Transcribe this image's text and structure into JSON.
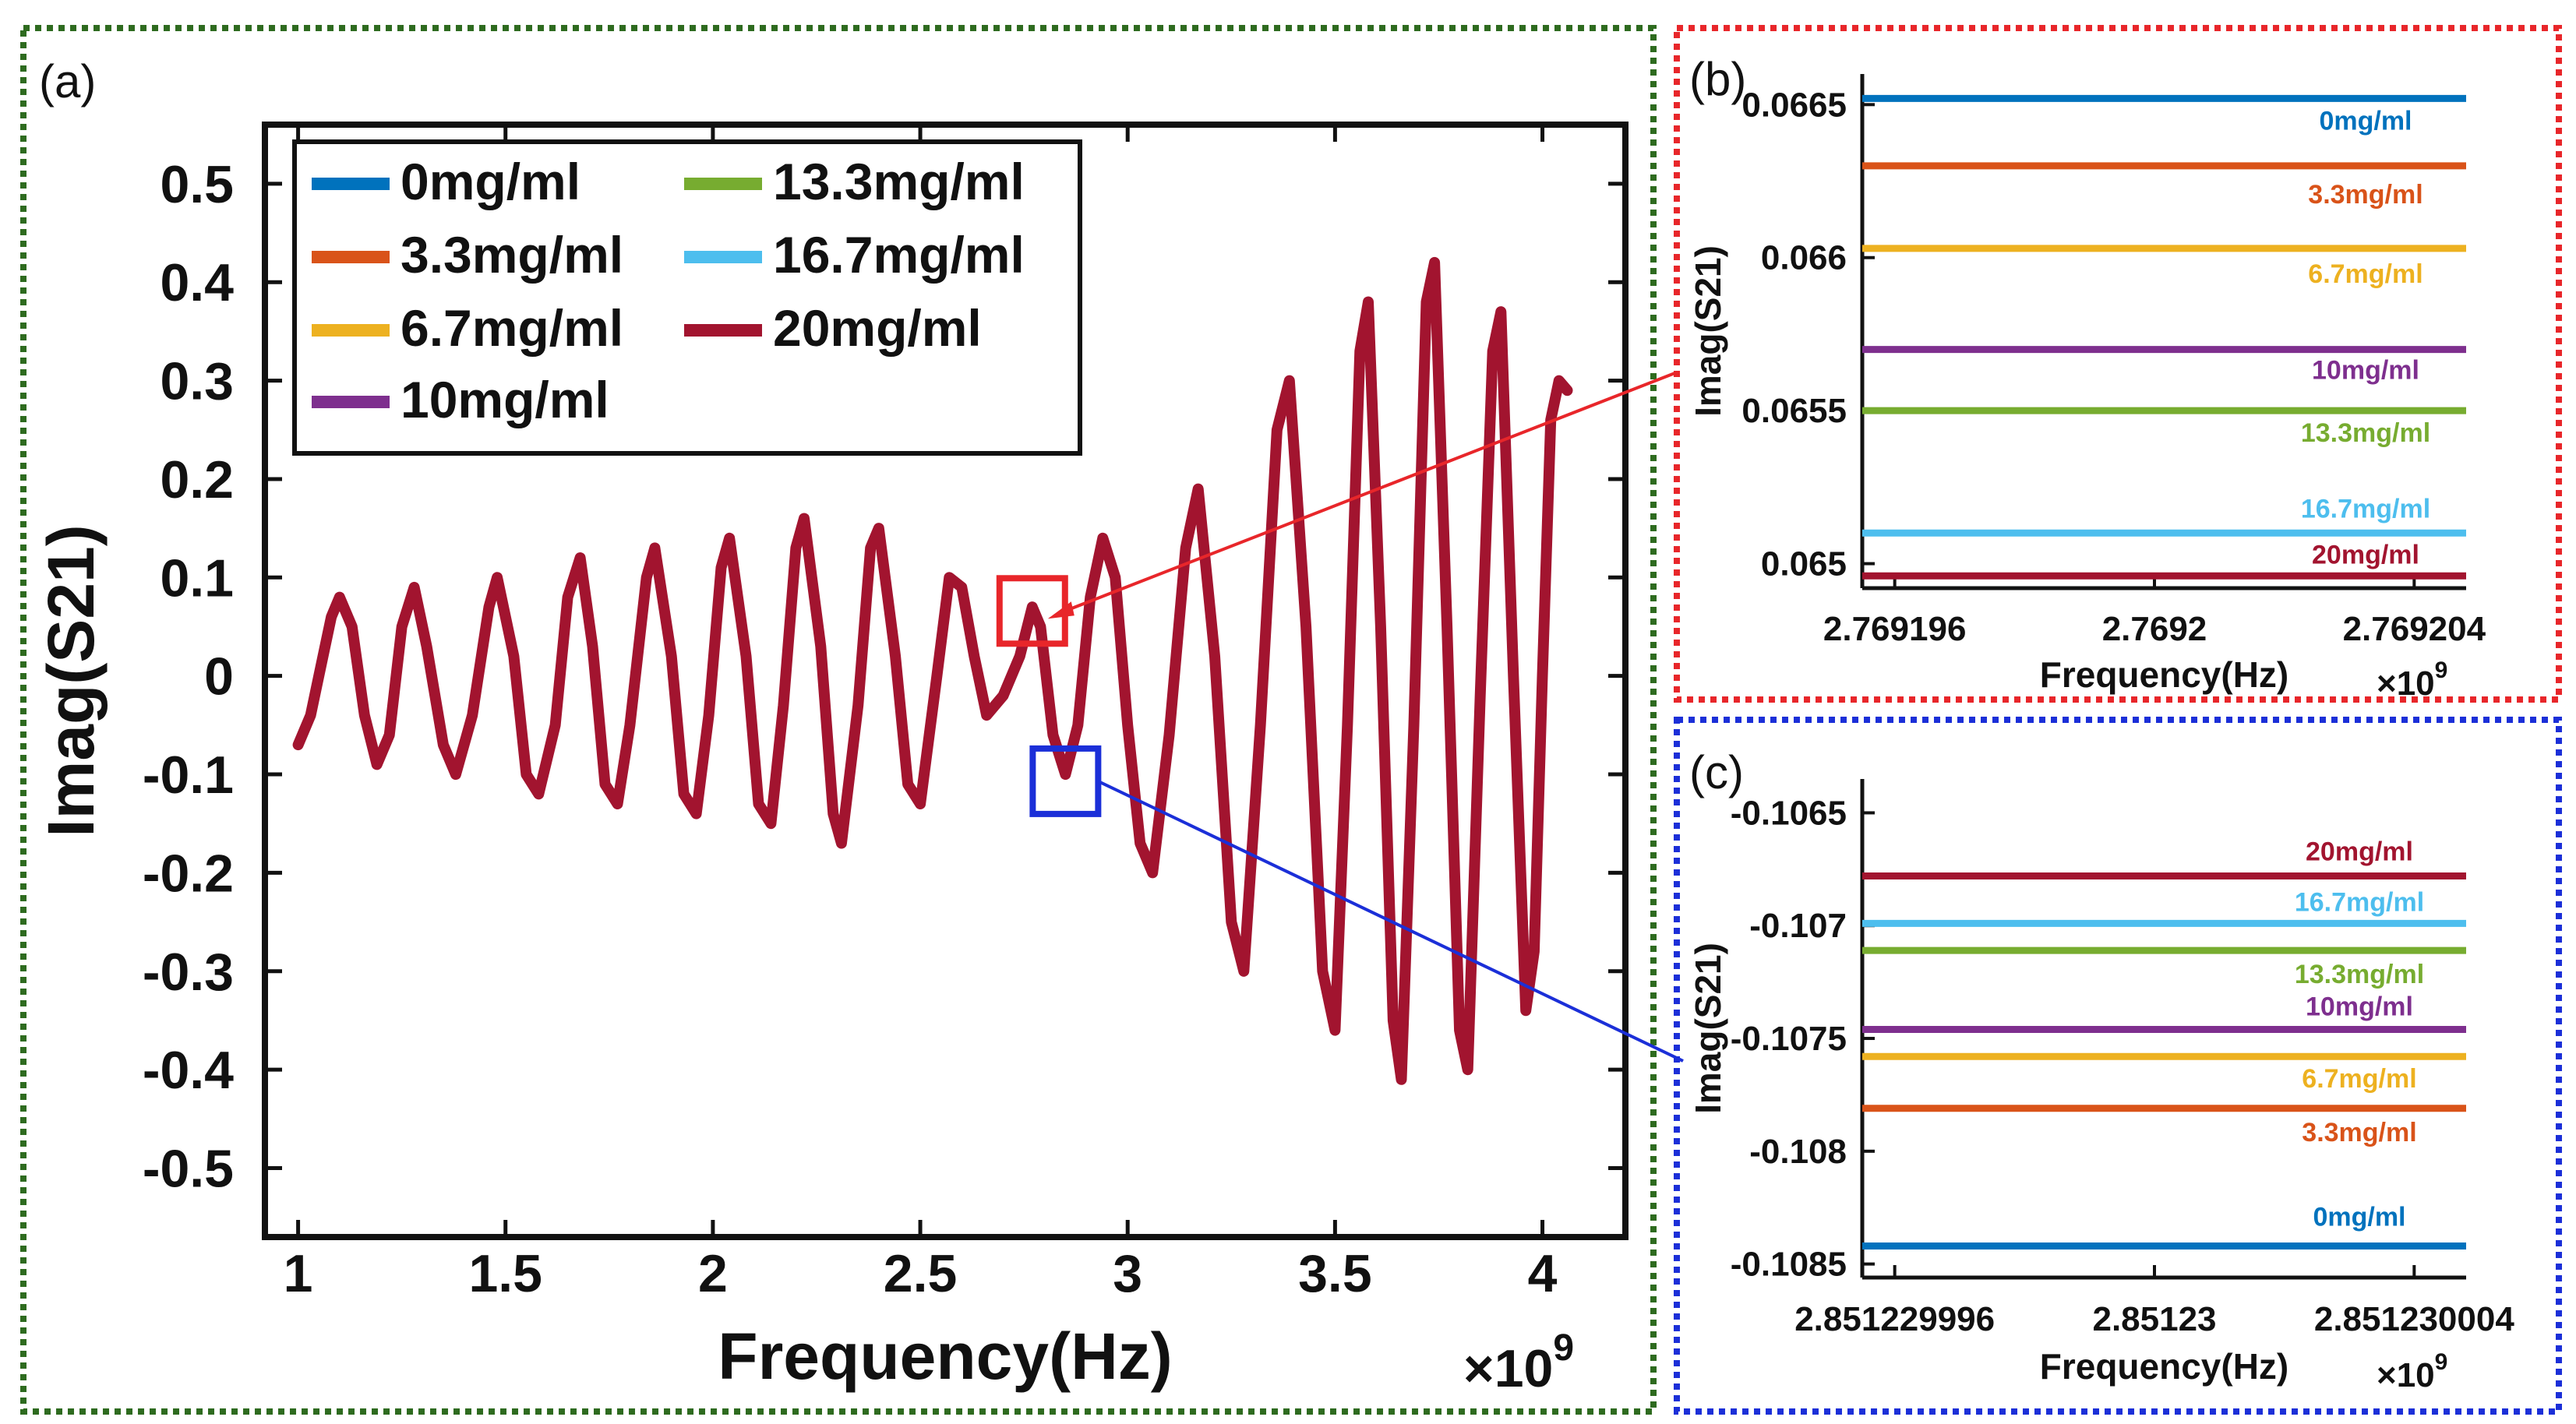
{
  "colors": {
    "0mg/ml": "#0072BD",
    "3.3mg/ml": "#D95319",
    "6.7mg/ml": "#EDB120",
    "10mg/ml": "#7E2F8E",
    "13.3mg/ml": "#77AC30",
    "16.7mg/ml": "#4DBEEE",
    "20mg/ml": "#A2142F",
    "frame_a": "#2E6B1F",
    "frame_b": "#E8262A",
    "frame_c": "#1B2FD8"
  },
  "chart_data": [
    {
      "panel": "(a)",
      "type": "line",
      "xlabel": "Frequency(Hz)",
      "ylabel": "Imag(S21)",
      "x_multiplier": "×10",
      "x_multiplier_exp": "9",
      "xlim": [
        0.92,
        4.2
      ],
      "ylim": [
        -0.57,
        0.56
      ],
      "xticks": [
        {
          "v": 1,
          "label": "1"
        },
        {
          "v": 1.5,
          "label": "1.5"
        },
        {
          "v": 2,
          "label": "2"
        },
        {
          "v": 2.5,
          "label": "2.5"
        },
        {
          "v": 3,
          "label": "3"
        },
        {
          "v": 3.5,
          "label": "3.5"
        },
        {
          "v": 4,
          "label": "4"
        }
      ],
      "yticks": [
        {
          "v": 0.5,
          "label": "0.5"
        },
        {
          "v": 0.4,
          "label": "0.4"
        },
        {
          "v": 0.3,
          "label": "0.3"
        },
        {
          "v": 0.2,
          "label": "0.2"
        },
        {
          "v": 0.1,
          "label": "0.1"
        },
        {
          "v": 0,
          "label": "0"
        },
        {
          "v": -0.1,
          "label": "-0.1"
        },
        {
          "v": -0.2,
          "label": "-0.2"
        },
        {
          "v": -0.3,
          "label": "-0.3"
        },
        {
          "v": -0.4,
          "label": "-0.4"
        },
        {
          "v": -0.5,
          "label": "-0.5"
        }
      ],
      "legend": {
        "placement": "top-left",
        "entries": [
          "0mg/ml",
          "3.3mg/ml",
          "6.7mg/ml",
          "10mg/ml",
          "13.3mg/ml",
          "16.7mg/ml",
          "20mg/ml"
        ]
      },
      "series": [
        {
          "name": "20mg/ml",
          "note_visible": "all concentration curves overlap; only 20mg/ml is visible on top",
          "points": [
            [
              1.0,
              -0.07
            ],
            [
              1.03,
              -0.04
            ],
            [
              1.05,
              0.0
            ],
            [
              1.08,
              0.06
            ],
            [
              1.1,
              0.08
            ],
            [
              1.13,
              0.05
            ],
            [
              1.16,
              -0.04
            ],
            [
              1.19,
              -0.09
            ],
            [
              1.22,
              -0.06
            ],
            [
              1.25,
              0.05
            ],
            [
              1.28,
              0.09
            ],
            [
              1.31,
              0.03
            ],
            [
              1.35,
              -0.07
            ],
            [
              1.38,
              -0.1
            ],
            [
              1.42,
              -0.04
            ],
            [
              1.46,
              0.07
            ],
            [
              1.48,
              0.1
            ],
            [
              1.52,
              0.02
            ],
            [
              1.55,
              -0.1
            ],
            [
              1.58,
              -0.12
            ],
            [
              1.62,
              -0.05
            ],
            [
              1.65,
              0.08
            ],
            [
              1.68,
              0.12
            ],
            [
              1.71,
              0.03
            ],
            [
              1.74,
              -0.11
            ],
            [
              1.77,
              -0.13
            ],
            [
              1.8,
              -0.05
            ],
            [
              1.84,
              0.1
            ],
            [
              1.86,
              0.13
            ],
            [
              1.9,
              0.02
            ],
            [
              1.93,
              -0.12
            ],
            [
              1.96,
              -0.14
            ],
            [
              1.99,
              -0.04
            ],
            [
              2.02,
              0.11
            ],
            [
              2.04,
              0.14
            ],
            [
              2.08,
              0.02
            ],
            [
              2.11,
              -0.13
            ],
            [
              2.14,
              -0.15
            ],
            [
              2.17,
              -0.03
            ],
            [
              2.2,
              0.13
            ],
            [
              2.22,
              0.16
            ],
            [
              2.26,
              0.03
            ],
            [
              2.29,
              -0.14
            ],
            [
              2.31,
              -0.17
            ],
            [
              2.35,
              -0.03
            ],
            [
              2.38,
              0.13
            ],
            [
              2.4,
              0.15
            ],
            [
              2.44,
              0.02
            ],
            [
              2.47,
              -0.11
            ],
            [
              2.5,
              -0.13
            ],
            [
              2.54,
              0.0
            ],
            [
              2.57,
              0.1
            ],
            [
              2.6,
              0.09
            ],
            [
              2.63,
              0.02
            ],
            [
              2.66,
              -0.04
            ],
            [
              2.7,
              -0.02
            ],
            [
              2.74,
              0.02
            ],
            [
              2.77,
              0.07
            ],
            [
              2.79,
              0.05
            ],
            [
              2.82,
              -0.06
            ],
            [
              2.85,
              -0.1
            ],
            [
              2.88,
              -0.05
            ],
            [
              2.91,
              0.08
            ],
            [
              2.94,
              0.14
            ],
            [
              2.97,
              0.1
            ],
            [
              3.0,
              -0.05
            ],
            [
              3.03,
              -0.17
            ],
            [
              3.06,
              -0.2
            ],
            [
              3.1,
              -0.06
            ],
            [
              3.14,
              0.13
            ],
            [
              3.17,
              0.19
            ],
            [
              3.21,
              0.02
            ],
            [
              3.25,
              -0.25
            ],
            [
              3.28,
              -0.3
            ],
            [
              3.32,
              -0.05
            ],
            [
              3.36,
              0.25
            ],
            [
              3.39,
              0.3
            ],
            [
              3.43,
              0.05
            ],
            [
              3.47,
              -0.3
            ],
            [
              3.5,
              -0.36
            ],
            [
              3.53,
              -0.05
            ],
            [
              3.56,
              0.33
            ],
            [
              3.58,
              0.38
            ],
            [
              3.61,
              0.05
            ],
            [
              3.64,
              -0.35
            ],
            [
              3.66,
              -0.41
            ],
            [
              3.69,
              -0.05
            ],
            [
              3.72,
              0.38
            ],
            [
              3.74,
              0.42
            ],
            [
              3.77,
              0.05
            ],
            [
              3.8,
              -0.36
            ],
            [
              3.82,
              -0.4
            ],
            [
              3.85,
              -0.02
            ],
            [
              3.88,
              0.33
            ],
            [
              3.9,
              0.37
            ],
            [
              3.93,
              0.0
            ],
            [
              3.96,
              -0.34
            ],
            [
              3.98,
              -0.28
            ],
            [
              4.0,
              0.0
            ],
            [
              4.02,
              0.26
            ],
            [
              4.04,
              0.3
            ],
            [
              4.06,
              0.29
            ]
          ]
        }
      ],
      "zoom_boxes": [
        {
          "target": "(b)",
          "x_center": 2.77,
          "y_center": 0.066
        },
        {
          "target": "(c)",
          "x_center": 2.85,
          "y_center": -0.107
        }
      ]
    },
    {
      "panel": "(b)",
      "type": "line",
      "xlabel": "Frequency(Hz)",
      "ylabel": "Imag(S21)",
      "x_multiplier": "×10",
      "x_multiplier_exp": "9",
      "xlim": [
        2.7691955,
        2.7692048
      ],
      "ylim": [
        0.06492,
        0.0666
      ],
      "xticks": [
        {
          "v": 2.769196,
          "label": "2.769196"
        },
        {
          "v": 2.7692,
          "label": "2.7692"
        },
        {
          "v": 2.769204,
          "label": "2.769204"
        }
      ],
      "yticks": [
        {
          "v": 0.0665,
          "label": "0.0665"
        },
        {
          "v": 0.066,
          "label": "0.066"
        },
        {
          "v": 0.0655,
          "label": "0.0655"
        },
        {
          "v": 0.065,
          "label": "0.065"
        }
      ],
      "series": [
        {
          "name": "0mg/ml",
          "value": 0.06652
        },
        {
          "name": "3.3mg/ml",
          "value": 0.0663
        },
        {
          "name": "6.7mg/ml",
          "value": 0.06603
        },
        {
          "name": "10mg/ml",
          "value": 0.0657
        },
        {
          "name": "13.3mg/ml",
          "value": 0.0655
        },
        {
          "name": "16.7mg/ml",
          "value": 0.0651
        },
        {
          "name": "20mg/ml",
          "value": 0.06496
        }
      ]
    },
    {
      "panel": "(c)",
      "type": "line",
      "xlabel": "Frequency(Hz)",
      "ylabel": "Imag(S21)",
      "x_multiplier": "×10",
      "x_multiplier_exp": "9",
      "xlim": [
        2.8512299955,
        2.8512300048
      ],
      "ylim": [
        -0.10856,
        -0.10635
      ],
      "xticks": [
        {
          "v": 2.851229996,
          "label": "2.851229996"
        },
        {
          "v": 2.85123,
          "label": "2.85123"
        },
        {
          "v": 2.851230004,
          "label": "2.851230004"
        }
      ],
      "yticks": [
        {
          "v": -0.1065,
          "label": "-0.1065"
        },
        {
          "v": -0.107,
          "label": "-0.107"
        },
        {
          "v": -0.1075,
          "label": "-0.1075"
        },
        {
          "v": -0.108,
          "label": "-0.108"
        },
        {
          "v": -0.1085,
          "label": "-0.1085"
        }
      ],
      "series": [
        {
          "name": "20mg/ml",
          "value": -0.10678
        },
        {
          "name": "16.7mg/ml",
          "value": -0.10699
        },
        {
          "name": "13.3mg/ml",
          "value": -0.10711
        },
        {
          "name": "10mg/ml",
          "value": -0.10746
        },
        {
          "name": "6.7mg/ml",
          "value": -0.10758
        },
        {
          "name": "3.3mg/ml",
          "value": -0.10781
        },
        {
          "name": "0mg/ml",
          "value": -0.10842
        }
      ]
    }
  ]
}
